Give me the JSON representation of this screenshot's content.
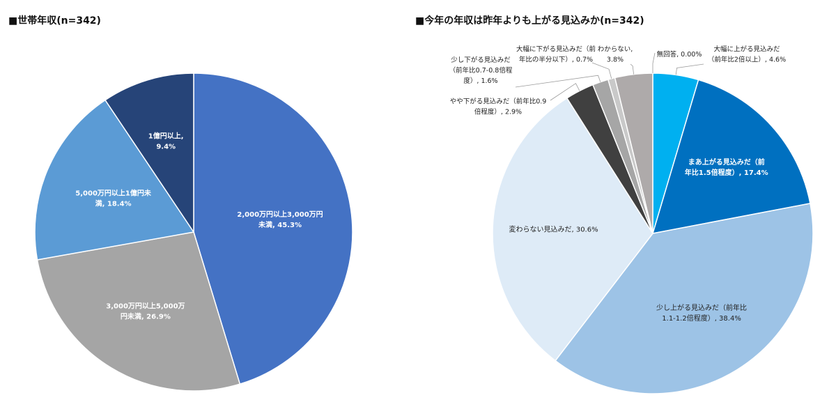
{
  "chart_data": [
    {
      "type": "pie",
      "title": "■世帯年収(n=342)",
      "start": "top",
      "direction": "clockwise",
      "colors": {
        "text_light": "#ffffff",
        "border": "#ffffff"
      },
      "slices": [
        {
          "label_lines": [
            "2,000万円以上3,000万円",
            "未満, 45.3%"
          ],
          "value": 45.3,
          "color": "#4472C4"
        },
        {
          "label_lines": [
            "3,000万円以上5,000万",
            "円未満, 26.9%"
          ],
          "value": 26.9,
          "color": "#A5A5A5"
        },
        {
          "label_lines": [
            "5,000万円以上1億円未",
            "満, 18.4%"
          ],
          "value": 18.4,
          "color": "#5B9BD5"
        },
        {
          "label_lines": [
            "1億円以上,",
            "9.4%"
          ],
          "value": 9.4,
          "color": "#264478"
        }
      ]
    },
    {
      "type": "pie",
      "title": "■今年の年収は昨年よりも上がる見込みか(n=342)",
      "start": "top",
      "direction": "clockwise",
      "colors": {
        "leader": "#9a9a9a",
        "border": "#ffffff"
      },
      "slices": [
        {
          "label_lines": [
            "大幅に上がる見込みだ",
            "（前年比2倍以上）, 4.6%"
          ],
          "value": 4.6,
          "color": "#00B0F0"
        },
        {
          "label_lines": [
            "まあ上がる見込みだ（前",
            "年比1.5倍程度）, 17.4%"
          ],
          "value": 17.4,
          "color": "#0070C0"
        },
        {
          "label_lines": [
            "少し上がる見込みだ（前年比",
            "1.1-1.2倍程度）, 38.4%"
          ],
          "value": 38.4,
          "color": "#9DC3E6"
        },
        {
          "label_lines": [
            "変わらない見込みだ, 30.6%"
          ],
          "value": 30.6,
          "color": "#DEEBF7"
        },
        {
          "label_lines": [
            "やや下がる見込みだ（前年比0.9",
            "倍程度）, 2.9%"
          ],
          "value": 2.9,
          "color": "#404040"
        },
        {
          "label_lines": [
            "少し下がる見込みだ",
            "（前年比0.7-0.8倍程",
            "度）, 1.6%"
          ],
          "value": 1.6,
          "color": "#A6A6A6"
        },
        {
          "label_lines": [
            "大幅に下がる見込みだ（前",
            "年比の半分以下）, 0.7%"
          ],
          "value": 0.7,
          "color": "#C9C9C9"
        },
        {
          "label_lines": [
            "わからない,",
            "3.8%"
          ],
          "value": 3.8,
          "color": "#AEAAAA"
        },
        {
          "label_lines": [
            "無回答, 0.00%"
          ],
          "value": 0.0,
          "color": "#7F7F7F"
        }
      ]
    }
  ]
}
